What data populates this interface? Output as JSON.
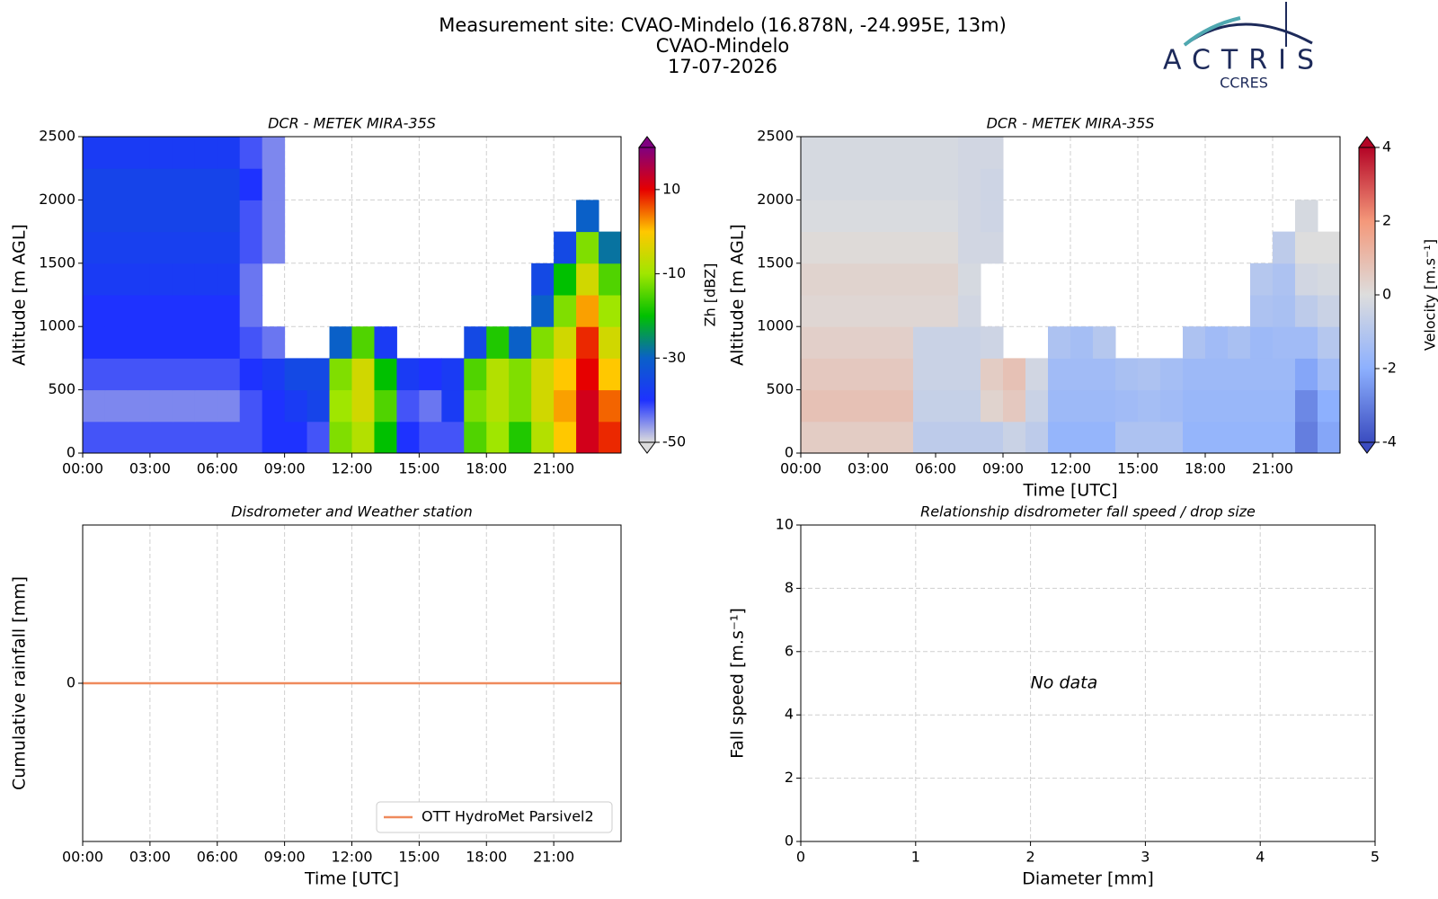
{
  "header": {
    "title_lines": [
      "Measurement site: CVAO-Mindelo (16.878N, -24.995E, 13m)",
      "CVAO-Mindelo",
      "17-07-2026"
    ],
    "logo": "ACTRIS",
    "logo_sub": "CCRES"
  },
  "chart_data": [
    {
      "type": "heatmap",
      "title": "DCR - METEK MIRA-35S",
      "ylabel": "Altitude [m AGL]",
      "xlim": [
        0,
        24
      ],
      "xticks": [
        {
          "value": 0,
          "label": "00:00"
        },
        {
          "value": 3,
          "label": "03:00"
        },
        {
          "value": 6,
          "label": "06:00"
        },
        {
          "value": 9,
          "label": "09:00"
        },
        {
          "value": 12,
          "label": "12:00"
        },
        {
          "value": 15,
          "label": "15:00"
        },
        {
          "value": 18,
          "label": "18:00"
        },
        {
          "value": 21,
          "label": "21:00"
        }
      ],
      "ylim": [
        0,
        2500
      ],
      "yticks": [
        0,
        500,
        1000,
        1500,
        2000,
        2500
      ],
      "grid": true,
      "colorbar_label": "Zh [dBZ]",
      "clim": [
        -50,
        20
      ],
      "cbticks": [
        10,
        -10,
        -30,
        -50
      ],
      "colorscale": [
        "#dcdcdc",
        "#1e32ff",
        "#0a60c8",
        "#00c000",
        "#a0e600",
        "#ffc800",
        "#e60000",
        "#800080"
      ],
      "xbins": [
        0,
        1,
        2,
        3,
        4,
        5,
        6,
        7,
        8,
        9,
        10,
        11,
        12,
        13,
        14,
        15,
        16,
        17,
        18,
        19,
        20,
        21,
        22,
        23,
        24
      ],
      "ybins": [
        0,
        250,
        500,
        750,
        1000,
        1250,
        1500,
        1750,
        2000,
        2250,
        2500
      ],
      "z": [
        [
          -42,
          -42,
          -42,
          -42,
          -42,
          -42,
          -42,
          -42,
          -40,
          -40,
          -42,
          -12,
          -8,
          -20,
          -40,
          -42,
          -42,
          -15,
          -10,
          -18,
          -8,
          0,
          12,
          8
        ],
        [
          -45,
          -45,
          -45,
          -45,
          -45,
          -45,
          -45,
          -42,
          -40,
          -38,
          -36,
          -10,
          -5,
          -15,
          -42,
          -44,
          -38,
          -12,
          -8,
          -12,
          -5,
          2,
          12,
          5
        ],
        [
          -42,
          -42,
          -42,
          -42,
          -42,
          -42,
          -42,
          -40,
          -38,
          -35,
          -35,
          -12,
          -5,
          -20,
          -38,
          -40,
          -38,
          -15,
          -8,
          -12,
          -5,
          0,
          10,
          0
        ],
        [
          -40,
          -40,
          -40,
          -40,
          -40,
          -40,
          -40,
          -42,
          -44,
          null,
          null,
          -30,
          -15,
          -38,
          null,
          null,
          null,
          -35,
          -18,
          -30,
          -12,
          -5,
          8,
          -5
        ],
        [
          -40,
          -40,
          -40,
          -40,
          -40,
          -40,
          -40,
          -44,
          null,
          null,
          null,
          null,
          null,
          null,
          null,
          null,
          null,
          null,
          null,
          null,
          -30,
          -12,
          2,
          -10
        ],
        [
          -38,
          -38,
          -38,
          -38,
          -38,
          -38,
          -38,
          -44,
          null,
          null,
          null,
          null,
          null,
          null,
          null,
          null,
          null,
          null,
          null,
          null,
          -35,
          -20,
          -5,
          -15
        ],
        [
          -37,
          -37,
          -37,
          -37,
          -37,
          -37,
          -37,
          -42,
          -45,
          null,
          null,
          null,
          null,
          null,
          null,
          null,
          null,
          null,
          null,
          null,
          null,
          -35,
          -12,
          -28
        ],
        [
          -36,
          -36,
          -36,
          -36,
          -36,
          -36,
          -36,
          -42,
          -45,
          null,
          null,
          null,
          null,
          null,
          null,
          null,
          null,
          null,
          null,
          null,
          null,
          null,
          -30,
          null
        ],
        [
          -36,
          -36,
          -36,
          -36,
          -36,
          -36,
          -36,
          -40,
          -45,
          null,
          null,
          null,
          null,
          null,
          null,
          null,
          null,
          null,
          null,
          null,
          null,
          null,
          null,
          null
        ],
        [
          -38,
          -38,
          -38,
          -38,
          -38,
          -38,
          -38,
          -42,
          -45,
          null,
          null,
          null,
          null,
          null,
          null,
          null,
          null,
          null,
          null,
          null,
          null,
          null,
          null,
          null
        ]
      ]
    },
    {
      "type": "heatmap",
      "title": "DCR - METEK MIRA-35S",
      "ylabel": "Altitude [m AGL]",
      "xlabel": "Time [UTC]",
      "xlim": [
        0,
        24
      ],
      "xticks": [
        {
          "value": 0,
          "label": "00:00"
        },
        {
          "value": 3,
          "label": "03:00"
        },
        {
          "value": 6,
          "label": "06:00"
        },
        {
          "value": 9,
          "label": "09:00"
        },
        {
          "value": 12,
          "label": "12:00"
        },
        {
          "value": 15,
          "label": "15:00"
        },
        {
          "value": 18,
          "label": "18:00"
        },
        {
          "value": 21,
          "label": "21:00"
        }
      ],
      "ylim": [
        0,
        2500
      ],
      "yticks": [
        0,
        500,
        1000,
        1500,
        2000,
        2500
      ],
      "grid": true,
      "colorbar_label": "Velocity [m.s⁻¹]",
      "clim": [
        -4,
        4
      ],
      "cbticks": [
        4,
        2,
        0,
        -2,
        -4
      ],
      "colorscale": [
        "#3b4cc0",
        "#8db0fe",
        "#dddddd",
        "#f4987a",
        "#b40426"
      ],
      "xbins": [
        0,
        1,
        2,
        3,
        4,
        5,
        6,
        7,
        8,
        9,
        10,
        11,
        12,
        13,
        14,
        15,
        16,
        17,
        18,
        19,
        20,
        21,
        22,
        23,
        24
      ],
      "ybins": [
        0,
        250,
        500,
        750,
        1000,
        1250,
        1500,
        1750,
        2000,
        2250,
        2500
      ],
      "z": [
        [
          0.5,
          0.5,
          0.5,
          0.5,
          0.5,
          -0.8,
          -0.8,
          -0.8,
          -0.8,
          -0.5,
          -0.8,
          -1.8,
          -1.8,
          -1.8,
          -1.2,
          -1.2,
          -1.2,
          -1.8,
          -1.8,
          -1.8,
          -1.8,
          -1.8,
          -3,
          -2.2
        ],
        [
          0.8,
          0.8,
          0.8,
          0.8,
          0.8,
          -0.6,
          -0.6,
          -0.6,
          0.3,
          0.6,
          -0.5,
          -1.6,
          -1.6,
          -1.6,
          -1.5,
          -1.4,
          -1.5,
          -1.7,
          -1.7,
          -1.7,
          -1.7,
          -1.7,
          -2.8,
          -2
        ],
        [
          0.6,
          0.6,
          0.6,
          0.6,
          0.6,
          -0.5,
          -0.5,
          -0.5,
          0.5,
          0.8,
          -0.3,
          -1.5,
          -1.5,
          -1.5,
          -1.3,
          -1.2,
          -1.4,
          -1.6,
          -1.6,
          -1.6,
          -1.6,
          -1.6,
          -2.2,
          -1.5
        ],
        [
          0.4,
          0.4,
          0.4,
          0.4,
          0.4,
          -0.5,
          -0.5,
          -0.5,
          -0.4,
          null,
          null,
          -1.2,
          -1.4,
          -1,
          null,
          null,
          null,
          -1.2,
          -1.5,
          -1.3,
          -1.6,
          -1.5,
          -1.5,
          -1
        ],
        [
          0.2,
          0.2,
          0.2,
          0.2,
          0.2,
          0.2,
          0.2,
          -0.3,
          null,
          null,
          null,
          null,
          null,
          null,
          null,
          null,
          null,
          null,
          null,
          null,
          -1.2,
          -1.3,
          -0.8,
          -0.5
        ],
        [
          0.3,
          0.3,
          0.3,
          0.3,
          0.3,
          0.3,
          0.3,
          -0.2,
          null,
          null,
          null,
          null,
          null,
          null,
          null,
          null,
          null,
          null,
          null,
          null,
          -1,
          -1.2,
          -0.3,
          -0.2
        ],
        [
          0.1,
          0.1,
          0.1,
          0.1,
          0.1,
          0.1,
          0.1,
          -0.3,
          -0.3,
          null,
          null,
          null,
          null,
          null,
          null,
          null,
          null,
          null,
          null,
          null,
          null,
          -0.8,
          0,
          0
        ],
        [
          -0.1,
          -0.1,
          -0.1,
          -0.1,
          -0.1,
          -0.1,
          -0.1,
          -0.3,
          -0.4,
          null,
          null,
          null,
          null,
          null,
          null,
          null,
          null,
          null,
          null,
          null,
          null,
          null,
          -0.2,
          null
        ],
        [
          -0.2,
          -0.2,
          -0.2,
          -0.2,
          -0.2,
          -0.2,
          -0.2,
          -0.3,
          -0.4,
          null,
          null,
          null,
          null,
          null,
          null,
          null,
          null,
          null,
          null,
          null,
          null,
          null,
          null,
          null
        ],
        [
          -0.2,
          -0.2,
          -0.2,
          -0.2,
          -0.2,
          -0.2,
          -0.2,
          -0.3,
          -0.3,
          null,
          null,
          null,
          null,
          null,
          null,
          null,
          null,
          null,
          null,
          null,
          null,
          null,
          null,
          null
        ]
      ]
    },
    {
      "type": "line",
      "title": "Disdrometer and Weather station",
      "ylabel": "Cumulative rainfall [mm]",
      "xlabel": "Time [UTC]",
      "xlim": [
        0,
        24
      ],
      "xticks": [
        {
          "value": 0,
          "label": "00:00"
        },
        {
          "value": 3,
          "label": "03:00"
        },
        {
          "value": 6,
          "label": "06:00"
        },
        {
          "value": 9,
          "label": "09:00"
        },
        {
          "value": 12,
          "label": "12:00"
        },
        {
          "value": 15,
          "label": "15:00"
        },
        {
          "value": 18,
          "label": "18:00"
        },
        {
          "value": 21,
          "label": "21:00"
        }
      ],
      "ylim": [
        -1,
        1
      ],
      "yticks": [
        0
      ],
      "grid": true,
      "legend": "lower right",
      "x": [
        0,
        24
      ],
      "series": [
        {
          "name": "OTT HydroMet Parsivel2",
          "color": "#ef8a5c",
          "values": [
            0,
            0
          ]
        }
      ]
    },
    {
      "type": "scatter",
      "title": "Relationship disdrometer fall speed / drop size",
      "ylabel": "Fall speed [m.s⁻¹]",
      "xlabel": "Diameter [mm]",
      "xlim": [
        0,
        5
      ],
      "xticks": [
        0,
        1,
        2,
        3,
        4,
        5
      ],
      "ylim": [
        0,
        10
      ],
      "yticks": [
        0,
        2,
        4,
        6,
        8,
        10
      ],
      "grid": true,
      "annotation": "No data",
      "x": [],
      "values": []
    }
  ]
}
